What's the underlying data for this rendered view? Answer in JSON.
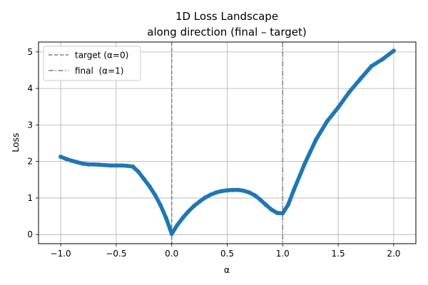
{
  "chart_data": {
    "type": "line",
    "title": "1D Loss Landscape",
    "subtitle": "along direction (final – target)",
    "xlabel": "α",
    "ylabel": "Loss",
    "xlim": [
      -1.2,
      2.2
    ],
    "ylim": [
      -0.25,
      5.27
    ],
    "xticks": [
      -1.0,
      -0.5,
      0.0,
      0.5,
      1.0,
      1.5,
      2.0
    ],
    "xtick_labels": [
      "−1.0",
      "−0.5",
      "0.0",
      "0.5",
      "1.0",
      "1.5",
      "2.0"
    ],
    "yticks": [
      0,
      1,
      2,
      3,
      4,
      5
    ],
    "ytick_labels": [
      "0",
      "1",
      "2",
      "3",
      "4",
      "5"
    ],
    "grid": true,
    "legend_position": "top-left",
    "series": [
      {
        "color": "#1f77b4",
        "x": [
          -1.0,
          -0.95,
          -0.9,
          -0.85,
          -0.8,
          -0.75,
          -0.7,
          -0.65,
          -0.6,
          -0.55,
          -0.5,
          -0.45,
          -0.4,
          -0.35,
          -0.3,
          -0.25,
          -0.2,
          -0.15,
          -0.1,
          -0.05,
          0.0,
          0.05,
          0.1,
          0.15,
          0.2,
          0.25,
          0.3,
          0.35,
          0.4,
          0.45,
          0.5,
          0.55,
          0.6,
          0.65,
          0.7,
          0.75,
          0.8,
          0.85,
          0.9,
          0.95,
          1.0,
          1.05,
          1.1,
          1.2,
          1.3,
          1.4,
          1.5,
          1.6,
          1.7,
          1.8,
          1.9,
          2.0
        ],
        "y": [
          2.13,
          2.07,
          2.02,
          1.98,
          1.94,
          1.92,
          1.92,
          1.91,
          1.9,
          1.89,
          1.89,
          1.89,
          1.88,
          1.86,
          1.72,
          1.52,
          1.32,
          1.08,
          0.8,
          0.45,
          0.02,
          0.26,
          0.46,
          0.63,
          0.78,
          0.9,
          1.01,
          1.09,
          1.15,
          1.19,
          1.21,
          1.22,
          1.22,
          1.2,
          1.15,
          1.07,
          0.95,
          0.81,
          0.68,
          0.59,
          0.58,
          0.82,
          1.22,
          1.95,
          2.6,
          3.1,
          3.48,
          3.9,
          4.26,
          4.61,
          4.8,
          5.03
        ]
      }
    ],
    "vlines": [
      {
        "x": 0.0,
        "label": "target (α=0)",
        "style": "dashed",
        "color": "#7f7f7f"
      },
      {
        "x": 1.0,
        "label": "final  (α=1)",
        "style": "dashdot",
        "color": "#7f7f7f"
      }
    ]
  }
}
